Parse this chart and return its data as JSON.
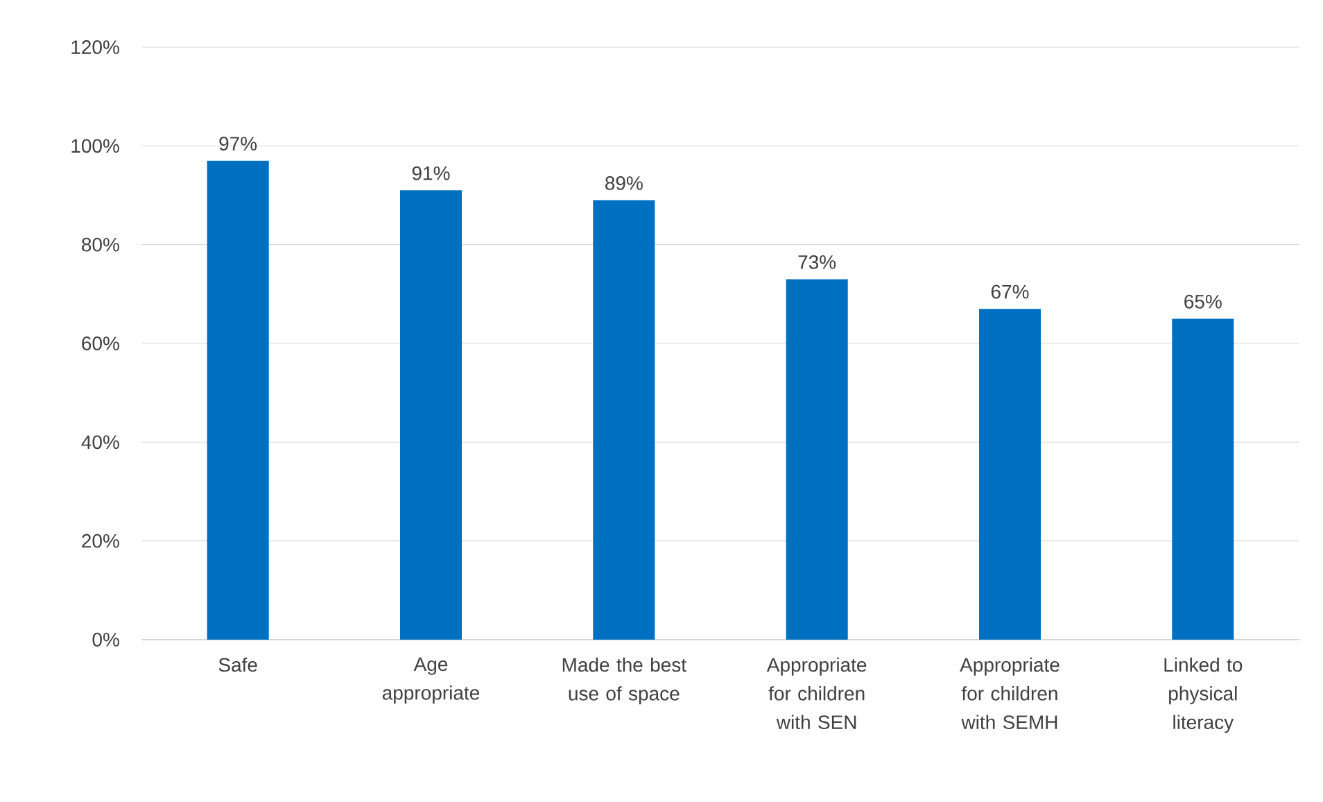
{
  "chart_data": {
    "type": "bar",
    "categories": [
      "Safe",
      "Age appropriate",
      "Made the best use of space",
      "Appropriate for children with SEN",
      "Appropriate for children with SEMH",
      "Linked to physical literacy"
    ],
    "values": [
      97,
      91,
      89,
      73,
      67,
      65
    ],
    "value_labels": [
      "97%",
      "91%",
      "89%",
      "73%",
      "67%",
      "65%"
    ],
    "color": "#0070c0",
    "ylim": [
      0,
      120
    ],
    "yticks": [
      {
        "value": 0,
        "label": "0%"
      },
      {
        "value": 20,
        "label": "20%"
      },
      {
        "value": 40,
        "label": "40%"
      },
      {
        "value": 60,
        "label": "60%"
      },
      {
        "value": 80,
        "label": "80%"
      },
      {
        "value": 100,
        "label": "100%"
      },
      {
        "value": 120,
        "label": "120%"
      }
    ],
    "grid": "y"
  }
}
